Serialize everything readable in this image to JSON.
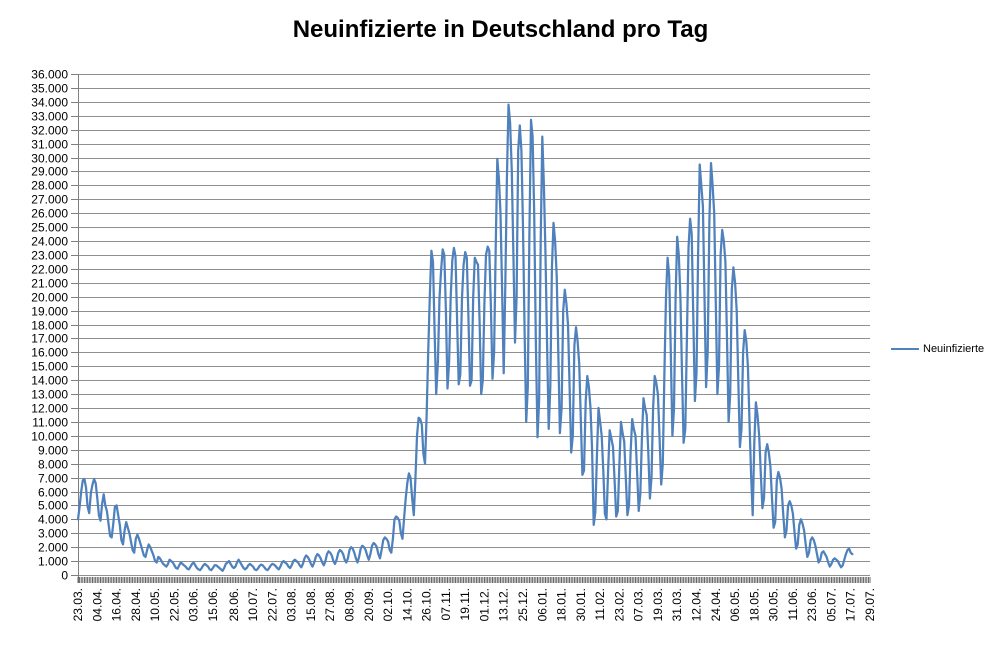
{
  "chart_title": "Neuinfizierte in Deutschland pro Tag",
  "legend": {
    "label": "Neuinfizierte",
    "line_color": "#4f81bd"
  },
  "colors": {
    "line": "#4f81bd",
    "gridline": "#8f8f8f",
    "axis": "#7f7f7f",
    "day_tick": "#555555",
    "text": "#000000",
    "background": "#ffffff"
  },
  "chart_data": {
    "type": "line",
    "title": "Neuinfizierte in Deutschland pro Tag",
    "xlabel": "",
    "ylabel": "",
    "ylim": [
      0,
      36000
    ],
    "y_tick_step": 1000,
    "grid": "horizontal",
    "legend_position": "right",
    "number_format": "de-DE",
    "y_ticks": [
      "36.000",
      "35.000",
      "34.000",
      "33.000",
      "32.000",
      "31.000",
      "30.000",
      "29.000",
      "28.000",
      "27.000",
      "26.000",
      "25.000",
      "24.000",
      "23.000",
      "22.000",
      "21.000",
      "20.000",
      "19.000",
      "18.000",
      "17.000",
      "16.000",
      "15.000",
      "14.000",
      "13.000",
      "12.000",
      "11.000",
      "10.000",
      "9.000",
      "8.000",
      "7.000",
      "6.000",
      "5.000",
      "4.000",
      "3.000",
      "2.000",
      "1.000",
      "0"
    ],
    "x_total_days": 493,
    "x_ticks": [
      {
        "label": "23.03.",
        "day": 0
      },
      {
        "label": "04.04.",
        "day": 12
      },
      {
        "label": "16.04.",
        "day": 24
      },
      {
        "label": "28.04.",
        "day": 36
      },
      {
        "label": "10.05.",
        "day": 48
      },
      {
        "label": "22.05.",
        "day": 60
      },
      {
        "label": "03.06.",
        "day": 72
      },
      {
        "label": "15.06.",
        "day": 84
      },
      {
        "label": "28.06.",
        "day": 97
      },
      {
        "label": "10.07.",
        "day": 109
      },
      {
        "label": "22.07.",
        "day": 121
      },
      {
        "label": "03.08.",
        "day": 133
      },
      {
        "label": "15.08.",
        "day": 145
      },
      {
        "label": "27.08.",
        "day": 157
      },
      {
        "label": "08.09.",
        "day": 169
      },
      {
        "label": "20.09.",
        "day": 181
      },
      {
        "label": "02.10.",
        "day": 193
      },
      {
        "label": "14.10.",
        "day": 205
      },
      {
        "label": "26.10.",
        "day": 217
      },
      {
        "label": "07.11.",
        "day": 229
      },
      {
        "label": "19.11.",
        "day": 241
      },
      {
        "label": "01.12.",
        "day": 253
      },
      {
        "label": "13.12.",
        "day": 265
      },
      {
        "label": "25.12.",
        "day": 277
      },
      {
        "label": "06.01.",
        "day": 289
      },
      {
        "label": "18.01.",
        "day": 301
      },
      {
        "label": "30.01.",
        "day": 313
      },
      {
        "label": "11.02.",
        "day": 325
      },
      {
        "label": "23.02.",
        "day": 337
      },
      {
        "label": "07.03.",
        "day": 349
      },
      {
        "label": "19.03.",
        "day": 361
      },
      {
        "label": "31.03.",
        "day": 373
      },
      {
        "label": "12.04.",
        "day": 385
      },
      {
        "label": "24.04.",
        "day": 397
      },
      {
        "label": "06.05.",
        "day": 409
      },
      {
        "label": "18.05.",
        "day": 421
      },
      {
        "label": "30.05.",
        "day": 433
      },
      {
        "label": "11.06.",
        "day": 445
      },
      {
        "label": "23.06.",
        "day": 457
      },
      {
        "label": "05.07.",
        "day": 469
      },
      {
        "label": "17.07.",
        "day": 481
      },
      {
        "label": "29.07.",
        "day": 493
      }
    ],
    "series": [
      {
        "name": "Neuinfizierte",
        "color": "#4f81bd",
        "start_date": "23.03.2020",
        "cadence": "daily",
        "values": [
          4000,
          4900,
          6000,
          6800,
          6900,
          6300,
          4900,
          4450,
          5900,
          6500,
          6900,
          6600,
          5500,
          4300,
          3900,
          5100,
          5800,
          5000,
          4600,
          3700,
          2800,
          2700,
          3700,
          4900,
          5000,
          4300,
          3600,
          2500,
          2200,
          3200,
          3800,
          3400,
          3000,
          2400,
          1800,
          1600,
          2600,
          2900,
          2600,
          2200,
          1800,
          1400,
          1300,
          1800,
          2200,
          2000,
          1700,
          1400,
          1000,
          900,
          1300,
          1200,
          1000,
          800,
          700,
          600,
          800,
          1100,
          1000,
          900,
          700,
          500,
          450,
          700,
          900,
          800,
          700,
          600,
          450,
          400,
          600,
          800,
          900,
          700,
          500,
          400,
          350,
          500,
          700,
          800,
          700,
          600,
          400,
          350,
          500,
          700,
          700,
          600,
          500,
          400,
          300,
          500,
          800,
          900,
          1000,
          800,
          600,
          500,
          600,
          900,
          1100,
          900,
          700,
          500,
          400,
          500,
          700,
          800,
          700,
          600,
          400,
          350,
          450,
          650,
          750,
          700,
          550,
          400,
          350,
          500,
          700,
          800,
          750,
          650,
          500,
          400,
          600,
          900,
          1000,
          900,
          800,
          600,
          500,
          700,
          1000,
          1100,
          1000,
          900,
          700,
          550,
          800,
          1200,
          1400,
          1300,
          1100,
          800,
          600,
          900,
          1300,
          1500,
          1400,
          1200,
          900,
          700,
          1000,
          1500,
          1700,
          1600,
          1400,
          1000,
          800,
          1100,
          1600,
          1800,
          1700,
          1500,
          1100,
          900,
          1200,
          1800,
          2000,
          1900,
          1600,
          1200,
          900,
          1300,
          1900,
          2100,
          2000,
          1800,
          1400,
          1100,
          1500,
          2100,
          2300,
          2200,
          2000,
          1500,
          1200,
          1800,
          2500,
          2700,
          2600,
          2400,
          1800,
          1600,
          2600,
          4000,
          4200,
          4100,
          3900,
          3000,
          2600,
          4100,
          5500,
          6600,
          7300,
          7000,
          5500,
          4300,
          6900,
          10000,
          11300,
          11200,
          10800,
          8700,
          8000,
          11400,
          16000,
          20000,
          23300,
          22500,
          17500,
          13000,
          15300,
          19900,
          21900,
          23400,
          23000,
          19000,
          13400,
          15300,
          20000,
          22600,
          23500,
          22900,
          18300,
          13700,
          14400,
          19900,
          22300,
          23200,
          22800,
          18600,
          13600,
          14000,
          20000,
          22800,
          22500,
          22300,
          18200,
          13000,
          14000,
          19500,
          23000,
          23600,
          23300,
          19300,
          14100,
          16000,
          23500,
          29900,
          28500,
          26000,
          20500,
          14500,
          20800,
          28500,
          33800,
          32500,
          29000,
          23000,
          16700,
          20000,
          30500,
          32300,
          30500,
          25000,
          17500,
          11000,
          13500,
          24500,
          32700,
          31500,
          26000,
          17000,
          9900,
          12500,
          24000,
          31500,
          28000,
          23000,
          16500,
          10500,
          13500,
          22000,
          25300,
          24000,
          21500,
          16000,
          10200,
          12000,
          19000,
          20500,
          19500,
          18000,
          13500,
          8800,
          10000,
          16500,
          17800,
          16800,
          15200,
          11200,
          7200,
          7500,
          12500,
          14300,
          13500,
          12000,
          9000,
          3600,
          4500,
          8500,
          12000,
          11000,
          10000,
          7500,
          4400,
          4000,
          7500,
          10400,
          9800,
          9200,
          6800,
          4200,
          4600,
          8000,
          11000,
          10200,
          9600,
          7000,
          4300,
          5000,
          8800,
          11200,
          10500,
          10000,
          7400,
          4600,
          5800,
          9800,
          12700,
          12000,
          11500,
          8800,
          5500,
          7000,
          12000,
          14300,
          13800,
          13000,
          10000,
          6500,
          8000,
          14500,
          20000,
          22800,
          21500,
          16000,
          10000,
          12000,
          20000,
          24300,
          23000,
          20000,
          14500,
          9500,
          10500,
          17000,
          23500,
          25600,
          24500,
          18500,
          12500,
          14500,
          23000,
          29500,
          28000,
          26500,
          20000,
          13500,
          16000,
          25500,
          29600,
          28000,
          26000,
          19500,
          13000,
          15000,
          23000,
          24800,
          24000,
          22500,
          17000,
          11000,
          13000,
          20500,
          22100,
          21000,
          19000,
          14000,
          9200,
          10500,
          16000,
          17600,
          16800,
          15000,
          11000,
          7200,
          4300,
          9500,
          12400,
          11500,
          10000,
          7300,
          4800,
          5500,
          8800,
          9400,
          8800,
          7800,
          5500,
          3400,
          3800,
          6800,
          7400,
          7000,
          6200,
          4400,
          2700,
          3200,
          5000,
          5300,
          5000,
          4400,
          3100,
          1900,
          2200,
          3600,
          4000,
          3700,
          3200,
          2200,
          1300,
          1600,
          2500,
          2700,
          2500,
          2100,
          1500,
          900,
          1100,
          1600,
          1700,
          1500,
          1300,
          900,
          600,
          800,
          1100,
          1200,
          1100,
          1000,
          750,
          550,
          700,
          1100,
          1500,
          1800,
          1900,
          1600,
          1500
        ]
      }
    ]
  }
}
